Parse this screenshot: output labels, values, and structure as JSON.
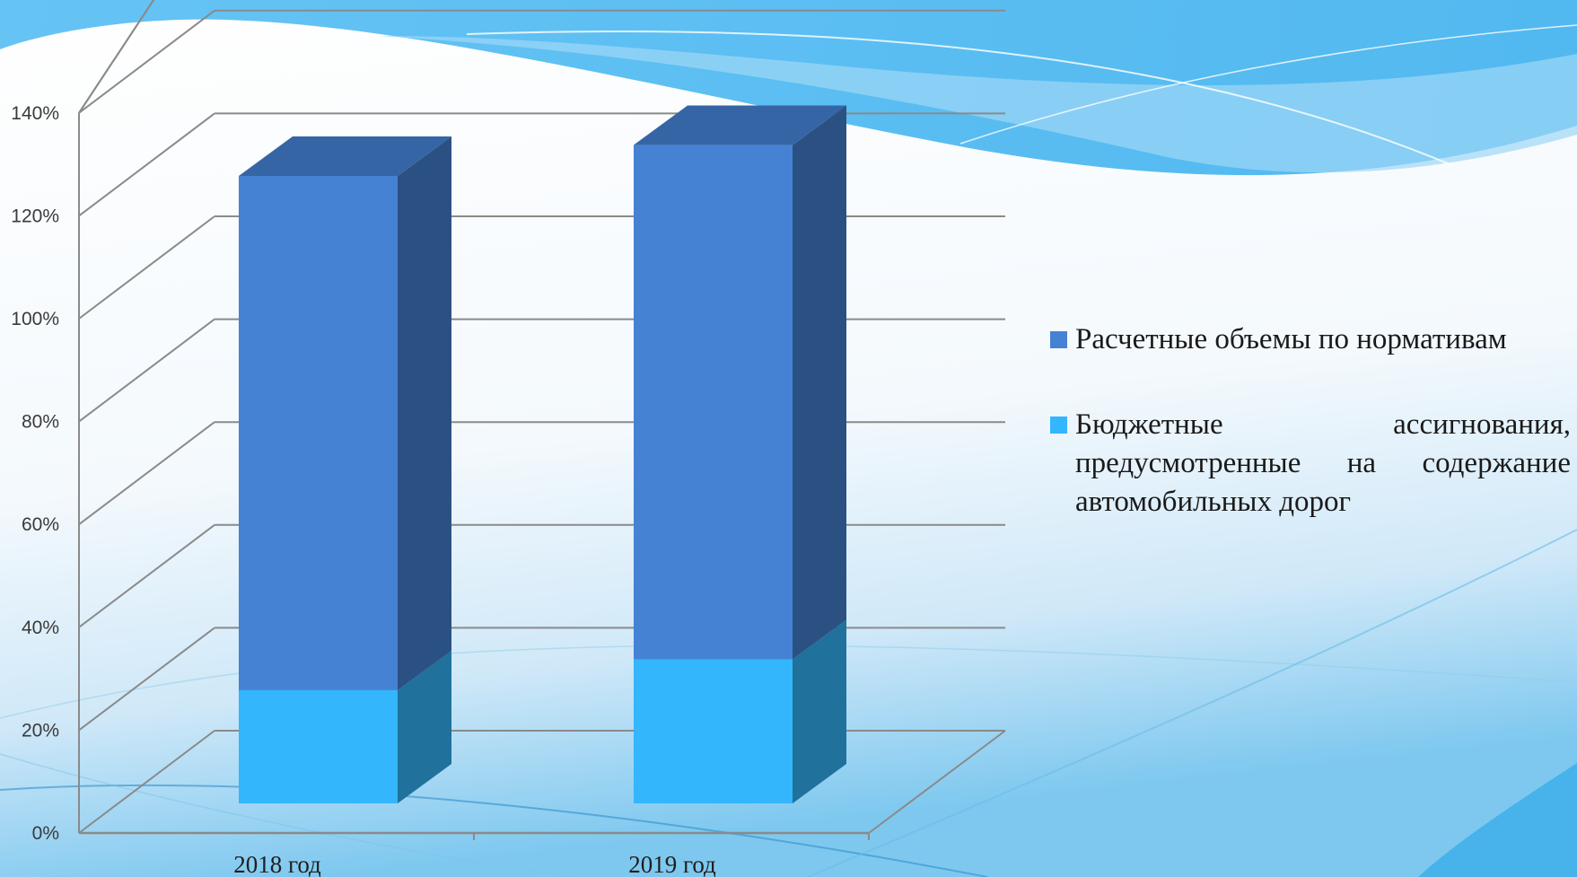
{
  "colors": {
    "series_top": "#4582d4",
    "series_bottom": "#33b6fc",
    "grid": "#8a8a8a",
    "background_wave": "#4db8f0"
  },
  "chart_data": {
    "type": "bar",
    "stacked": true,
    "three_d": true,
    "categories": [
      "2018 год",
      "2019 год"
    ],
    "series": [
      {
        "name": "Бюджетные ассигнования, предусмотренные на содержание автомобильных дорог",
        "values": [
          22,
          28
        ],
        "color": "#33b6fc"
      },
      {
        "name": "Расчетные объемы по нормативам",
        "values": [
          100,
          100
        ],
        "color": "#4582d4"
      }
    ],
    "yticks": [
      "0%",
      "20%",
      "40%",
      "60%",
      "80%",
      "100%",
      "120%",
      "140%"
    ],
    "ylim": [
      0,
      140
    ],
    "grid": true,
    "legend_position": "right"
  },
  "legend": {
    "items": [
      {
        "label": "Расчетные объемы по нормативам",
        "color": "#4582d4"
      },
      {
        "label": "Бюджетные ассигнования, предусмотренные на содержание автомобильных дорог",
        "color": "#33b6fc"
      }
    ]
  }
}
